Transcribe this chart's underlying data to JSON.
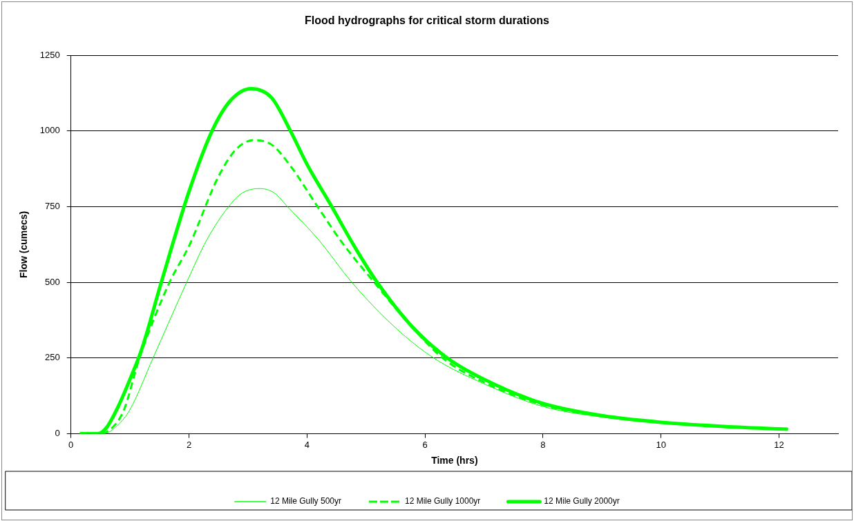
{
  "chart_data": {
    "type": "line",
    "title": "Flood hydrographs for critical storm durations",
    "xlabel": "Time (hrs)",
    "ylabel": "Flow (cumecs)",
    "xlim": [
      0,
      13
    ],
    "xticks": [
      0,
      2,
      4,
      6,
      8,
      10,
      12
    ],
    "ylim": [
      0,
      1250
    ],
    "yticks": [
      0,
      250,
      500,
      750,
      1000,
      1250
    ],
    "grid": "y",
    "legend": "bottom",
    "marker": "none",
    "series": [
      {
        "name": "12 Mile Gully 500yr",
        "color": "#00ff00",
        "line_style": "solid",
        "x": [
          0.15,
          0.55,
          0.8,
          1.0,
          1.39,
          1.96,
          2.3,
          2.67,
          2.9,
          3.2,
          3.45,
          3.67,
          4.2,
          4.76,
          5.5,
          6.15,
          7,
          8,
          9,
          10,
          11,
          12.15
        ],
        "values": [
          0,
          0,
          30,
          80,
          250,
          500,
          640,
          750,
          795,
          810,
          795,
          750,
          640,
          500,
          350,
          250,
          165,
          90,
          55,
          35,
          24,
          15
        ]
      },
      {
        "name": "12 Mile Gully 1000yr",
        "color": "#00ff00",
        "line_style": "dashed",
        "x": [
          0.15,
          0.5,
          0.7,
          0.9,
          1.16,
          1.67,
          2.0,
          2.5,
          2.8,
          3.1,
          3.4,
          3.7,
          4.18,
          4.6,
          5.14,
          5.7,
          6.3,
          7,
          8,
          9,
          10,
          11,
          12.15
        ],
        "values": [
          0,
          0,
          20,
          80,
          250,
          500,
          620,
          850,
          940,
          970,
          955,
          890,
          750,
          630,
          500,
          370,
          250,
          170,
          95,
          58,
          37,
          25,
          15
        ]
      },
      {
        "name": "12 Mile Gully 2000yr",
        "color": "#00ff00",
        "line_style": "solid",
        "x": [
          0.15,
          0.45,
          0.6,
          0.8,
          1.0,
          1.2,
          1.53,
          2.0,
          2.39,
          2.7,
          3.05,
          3.4,
          3.72,
          4.0,
          4.42,
          4.8,
          5.19,
          5.8,
          6.38,
          7,
          8,
          9,
          10,
          11,
          12.15
        ],
        "values": [
          0,
          0,
          20,
          90,
          180,
          280,
          500,
          800,
          1000,
          1100,
          1140,
          1110,
          1000,
          890,
          750,
          620,
          500,
          350,
          250,
          180,
          100,
          60,
          38,
          25,
          15
        ]
      }
    ]
  }
}
